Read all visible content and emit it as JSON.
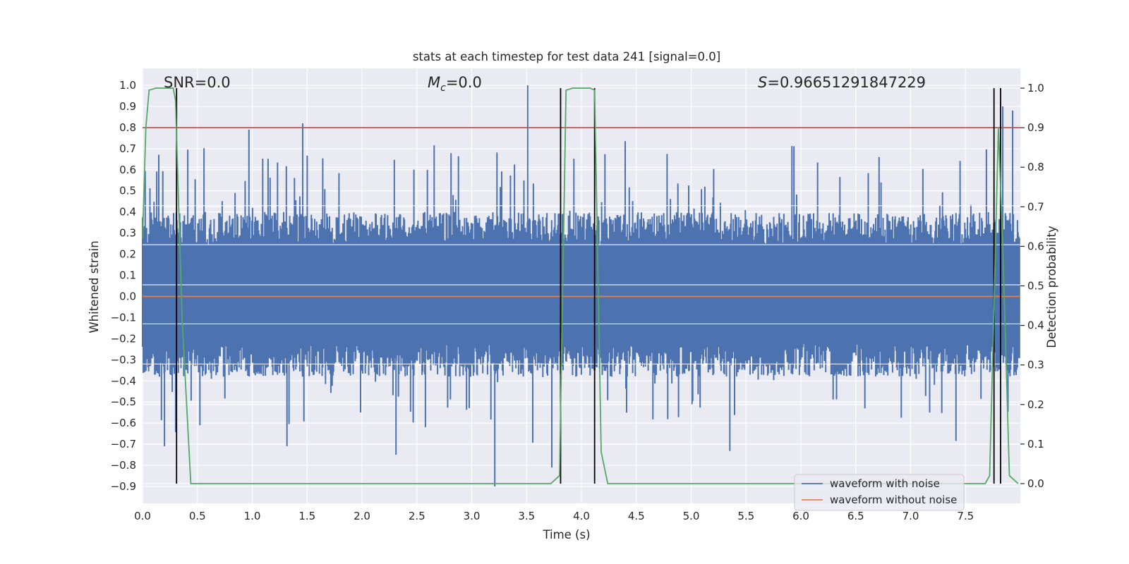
{
  "chart_data": {
    "type": "line",
    "title": "stats at each timestep for test data 241 [signal=0.0]",
    "xlabel": "Time (s)",
    "ylabel": "Whitened strain",
    "y2label": "Detection probability",
    "xlim": [
      0.0,
      8.0
    ],
    "ylim": [
      -0.98,
      1.08
    ],
    "y2lim": [
      -0.05,
      1.05
    ],
    "x_ticks": [
      "0.0",
      "0.5",
      "1.0",
      "1.5",
      "2.0",
      "2.5",
      "3.0",
      "3.5",
      "4.0",
      "4.5",
      "5.0",
      "5.5",
      "6.0",
      "6.5",
      "7.0",
      "7.5"
    ],
    "y_ticks": [
      "1.0",
      "0.9",
      "0.8",
      "0.7",
      "0.6",
      "0.5",
      "0.4",
      "0.3",
      "0.2",
      "0.1",
      "0.0",
      "−0.1",
      "−0.2",
      "−0.3",
      "−0.4",
      "−0.5",
      "−0.6",
      "−0.7",
      "−0.8",
      "−0.9"
    ],
    "y2_ticks": [
      "1.0",
      "0.9",
      "0.8",
      "0.7",
      "0.6",
      "0.5",
      "0.4",
      "0.3",
      "0.2",
      "0.1",
      "0.0"
    ],
    "annotations": {
      "snr": "SNR=0.0",
      "mc_symbol": "M",
      "mc_sub": "c",
      "mc_value": "=0.0",
      "s_symbol": "S",
      "s_value": "=0.96651291847229"
    },
    "legend": {
      "noise": "waveform with noise",
      "clean": "waveform without noise"
    },
    "series": [
      {
        "name": "waveform with noise",
        "color": "#4c72b0",
        "axis": "left",
        "envelope": "noise, roughly ±0.3 to ±0.4 with spikes up to 1.0 and down to -0.9"
      },
      {
        "name": "waveform without noise",
        "color": "#dd8452",
        "axis": "left",
        "value": 0.0
      },
      {
        "name": "detection probability",
        "color": "#55a868",
        "axis": "right",
        "x": [
          0.0,
          0.03,
          0.06,
          0.12,
          0.2,
          0.28,
          0.3,
          0.36,
          0.44,
          0.5,
          1.0,
          2.0,
          3.0,
          3.72,
          3.8,
          3.86,
          3.92,
          4.0,
          4.08,
          4.12,
          4.18,
          4.24,
          4.3,
          5.0,
          6.0,
          7.0,
          7.68,
          7.72,
          7.76,
          7.8,
          7.84,
          7.9,
          7.94,
          7.98
        ],
        "values": [
          0.62,
          0.9,
          0.995,
          1.0,
          1.0,
          1.0,
          0.97,
          0.42,
          0.0,
          0.0,
          0.0,
          0.0,
          0.0,
          0.0,
          0.02,
          0.995,
          1.0,
          1.0,
          1.0,
          0.995,
          0.08,
          0.0,
          0.0,
          0.0,
          0.0,
          0.0,
          0.0,
          0.02,
          0.45,
          0.9,
          0.6,
          0.02,
          0.01,
          0.0
        ]
      },
      {
        "name": "threshold",
        "color": "#c44e52",
        "axis": "right",
        "value": 0.9
      }
    ],
    "vertical_lines_x": [
      0.31,
      3.81,
      4.12,
      7.76,
      7.82
    ],
    "vertical_line_color": "#000000",
    "colors": {
      "background": "#eaeaf2",
      "grid": "#ffffff",
      "text": "#262626"
    }
  }
}
